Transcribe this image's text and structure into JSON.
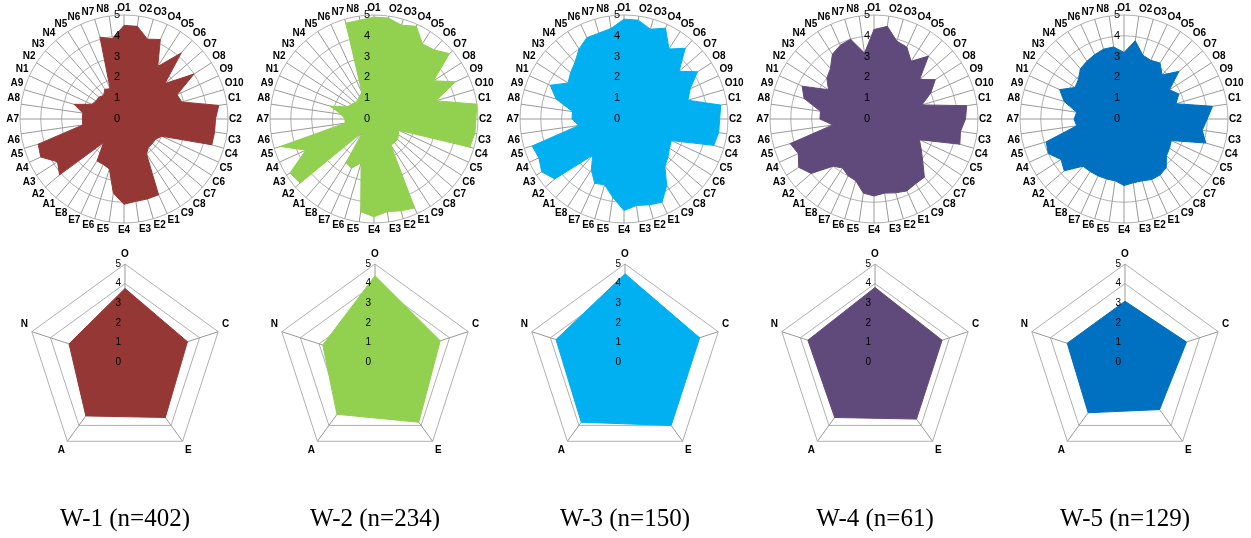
{
  "chart_data": [
    {
      "type": "radar",
      "categories": [
        "O1",
        "O2",
        "O3",
        "O4",
        "O5",
        "O6",
        "O7",
        "O8",
        "O9",
        "O10",
        "C1",
        "C2",
        "C3",
        "C4",
        "C5",
        "C6",
        "C7",
        "C8",
        "C9",
        "E1",
        "E2",
        "E3",
        "E4",
        "E5",
        "E6",
        "E7",
        "E8",
        "A1",
        "A2",
        "A3",
        "A4",
        "A5",
        "A6",
        "A7",
        "A8",
        "A9",
        "N1",
        "N2",
        "N3",
        "N4",
        "N5",
        "N6",
        "N7",
        "N8"
      ],
      "ylim": [
        0,
        5
      ],
      "yticks": [
        0,
        1,
        2,
        3,
        4,
        5
      ],
      "grid": true,
      "series": [
        {
          "color": "#953735",
          "values": [
            4.5,
            4.5,
            4.0,
            4.2,
            3.0,
            4.2,
            2.6,
            4.0,
            2.8,
            2.9,
            4.6,
            4.4,
            4.4,
            4.4,
            2.0,
            1.8,
            1.8,
            1.8,
            2.0,
            4.0,
            4.0,
            4.0,
            4.1,
            3.6,
            2.5,
            2.4,
            2.4,
            1.5,
            4.1,
            3.8,
            4.4,
            4.3,
            2.0,
            2.0,
            2.0,
            2.5,
            1.7,
            1.6,
            1.6,
            1.5,
            1.7,
            1.6,
            4.1,
            3.9
          ]
        }
      ]
    },
    {
      "type": "radar",
      "categories": [
        "O1",
        "O2",
        "O3",
        "O4",
        "O5",
        "O6",
        "O7",
        "O8",
        "O9",
        "O10",
        "C1",
        "C2",
        "C3",
        "C4",
        "C5",
        "C6",
        "C7",
        "C8",
        "C9",
        "E1",
        "E2",
        "E3",
        "E4",
        "E5",
        "E6",
        "E7",
        "E8",
        "A1",
        "A2",
        "A3",
        "A4",
        "A5",
        "A6",
        "A7",
        "A8",
        "A9",
        "N1",
        "N2",
        "N3",
        "N4",
        "N5",
        "N6",
        "N7",
        "N8"
      ],
      "ylim": [
        0,
        5
      ],
      "yticks": [
        0,
        1,
        2,
        3,
        4,
        5
      ],
      "grid": true,
      "series": [
        {
          "color": "#92d050",
          "values": [
            4.9,
            4.9,
            4.7,
            4.9,
            4.3,
            4.4,
            4.8,
            3.4,
            4.3,
            3.1,
            5.0,
            4.9,
            4.9,
            4.8,
            1.3,
            1.4,
            1.5,
            1.5,
            1.5,
            4.7,
            4.6,
            4.5,
            4.7,
            4.5,
            2.2,
            2.6,
            2.5,
            0.8,
            4.7,
            4.8,
            3.6,
            4.7,
            1.4,
            1.4,
            1.6,
            2.2,
            1.4,
            1.3,
            1.2,
            1.2,
            1.3,
            1.4,
            4.8,
            4.8
          ]
        }
      ]
    },
    {
      "type": "radar",
      "categories": [
        "O1",
        "O2",
        "O3",
        "O4",
        "O5",
        "O6",
        "O7",
        "O8",
        "O9",
        "O10",
        "C1",
        "C2",
        "C3",
        "C4",
        "C5",
        "C6",
        "C7",
        "C8",
        "C9",
        "E1",
        "E2",
        "E3",
        "E4",
        "E5",
        "E6",
        "E7",
        "E8",
        "A1",
        "A2",
        "A3",
        "A4",
        "A5",
        "A6",
        "A7",
        "A8",
        "A9",
        "N1",
        "N2",
        "N3",
        "N4",
        "N5",
        "N6",
        "N7",
        "N8"
      ],
      "ylim": [
        0,
        5
      ],
      "yticks": [
        0,
        1,
        2,
        3,
        4,
        5
      ],
      "grid": true,
      "series": [
        {
          "color": "#00b0f0",
          "values": [
            4.8,
            4.8,
            4.5,
            4.8,
            4.0,
            4.5,
            3.5,
            4.2,
            3.5,
            3.2,
            4.7,
            4.6,
            4.6,
            4.5,
            2.5,
            2.6,
            2.8,
            3.0,
            3.8,
            4.4,
            4.3,
            4.2,
            4.4,
            3.8,
            3.3,
            3.4,
            2.9,
            2.3,
            4.4,
            4.7,
            4.5,
            4.6,
            2.2,
            2.5,
            2.5,
            3.4,
            3.9,
            3.2,
            3.4,
            3.6,
            4.0,
            4.3,
            4.3,
            4.4
          ]
        }
      ]
    },
    {
      "type": "radar",
      "categories": [
        "O1",
        "O2",
        "O3",
        "O4",
        "O5",
        "O6",
        "O7",
        "O8",
        "O9",
        "O10",
        "C1",
        "C2",
        "C3",
        "C4",
        "C5",
        "C6",
        "C7",
        "C8",
        "C9",
        "E1",
        "E2",
        "E3",
        "E4",
        "E5",
        "E6",
        "E7",
        "E8",
        "A1",
        "A2",
        "A3",
        "A4",
        "A5",
        "A6",
        "A7",
        "A8",
        "A9",
        "N1",
        "N2",
        "N3",
        "N4",
        "N5",
        "N6",
        "N7",
        "N8"
      ],
      "ylim": [
        0,
        5
      ],
      "yticks": [
        0,
        1,
        2,
        3,
        4,
        5
      ],
      "grid": true,
      "series": [
        {
          "color": "#604a7b",
          "values": [
            4.3,
            4.5,
            3.9,
            3.8,
            3.3,
            4.0,
            2.9,
            3.5,
            3.0,
            2.4,
            4.5,
            4.4,
            4.2,
            4.3,
            2.4,
            2.7,
            3.1,
            3.7,
            3.7,
            3.8,
            3.7,
            3.6,
            3.7,
            3.6,
            3.1,
            3.0,
            2.8,
            3.0,
            4.0,
            4.3,
            4.0,
            4.2,
            2.0,
            2.6,
            2.6,
            3.5,
            3.8,
            2.6,
            3.0,
            3.2,
            3.7,
            3.9,
            4.0,
            3.2
          ]
        }
      ]
    },
    {
      "type": "radar",
      "categories": [
        "O1",
        "O2",
        "O3",
        "O4",
        "O5",
        "O6",
        "O7",
        "O8",
        "O9",
        "O10",
        "C1",
        "C2",
        "C3",
        "C4",
        "C5",
        "C6",
        "C7",
        "C8",
        "C9",
        "E1",
        "E2",
        "E3",
        "E4",
        "E5",
        "E6",
        "E7",
        "E8",
        "A1",
        "A2",
        "A3",
        "A4",
        "A5",
        "A6",
        "A7",
        "A8",
        "A9",
        "N1",
        "N2",
        "N3",
        "N4",
        "N5",
        "N6",
        "N7",
        "N8"
      ],
      "ylim": [
        0,
        5
      ],
      "yticks": [
        0,
        1,
        2,
        3,
        4,
        5
      ],
      "grid": true,
      "series": [
        {
          "color": "#0070c0",
          "values": [
            3.2,
            3.8,
            3.2,
            3.1,
            3.2,
            2.8,
            3.5,
            2.6,
            2.9,
            2.6,
            4.3,
            4.0,
            3.8,
            4.1,
            2.5,
            2.6,
            2.7,
            3.1,
            3.2,
            3.2,
            3.1,
            3.1,
            3.2,
            3.0,
            3.0,
            3.0,
            3.0,
            3.0,
            3.8,
            3.6,
            4.0,
            3.9,
            2.3,
            2.4,
            2.3,
            3.0,
            3.4,
            2.8,
            2.9,
            3.2,
            3.3,
            3.4,
            3.5,
            3.5
          ]
        }
      ]
    },
    {
      "type": "radar",
      "title": "W-1 (n=402)",
      "categories": [
        "O",
        "C",
        "E",
        "A",
        "N"
      ],
      "ylim": [
        0,
        5
      ],
      "yticks": [
        0,
        1,
        2,
        3,
        4,
        5
      ],
      "grid": true,
      "series": [
        {
          "color": "#953735",
          "values": [
            3.75,
            3.35,
            3.5,
            3.4,
            3.0
          ]
        }
      ]
    },
    {
      "type": "radar",
      "title": "W-2 (n=234)",
      "categories": [
        "O",
        "C",
        "E",
        "A",
        "N"
      ],
      "ylim": [
        0,
        5
      ],
      "yticks": [
        0,
        1,
        2,
        3,
        4,
        5
      ],
      "grid": true,
      "series": [
        {
          "color": "#92d050",
          "values": [
            4.4,
            3.5,
            3.8,
            3.3,
            2.8
          ]
        }
      ]
    },
    {
      "type": "radar",
      "title": "W-3 (n=150)",
      "categories": [
        "O",
        "C",
        "E",
        "A",
        "N"
      ],
      "ylim": [
        0,
        5
      ],
      "yticks": [
        0,
        1,
        2,
        3,
        4,
        5
      ],
      "grid": true,
      "series": [
        {
          "color": "#00b0f0",
          "values": [
            4.5,
            4.0,
            4.0,
            3.8,
            3.7
          ]
        }
      ]
    },
    {
      "type": "radar",
      "title": "W-4 (n=61)",
      "categories": [
        "O",
        "C",
        "E",
        "A",
        "N"
      ],
      "ylim": [
        0,
        5
      ],
      "yticks": [
        0,
        1,
        2,
        3,
        4,
        5
      ],
      "grid": true,
      "series": [
        {
          "color": "#604a7b",
          "values": [
            3.8,
            3.6,
            3.6,
            3.5,
            3.6
          ]
        }
      ]
    },
    {
      "type": "radar",
      "title": "W-5 (n=129)",
      "categories": [
        "O",
        "C",
        "E",
        "A",
        "N"
      ],
      "ylim": [
        0,
        5
      ],
      "yticks": [
        0,
        1,
        2,
        3,
        4,
        5
      ],
      "grid": true,
      "series": [
        {
          "color": "#0070c0",
          "values": [
            3.1,
            3.3,
            3.0,
            3.2,
            3.1
          ]
        }
      ]
    }
  ]
}
